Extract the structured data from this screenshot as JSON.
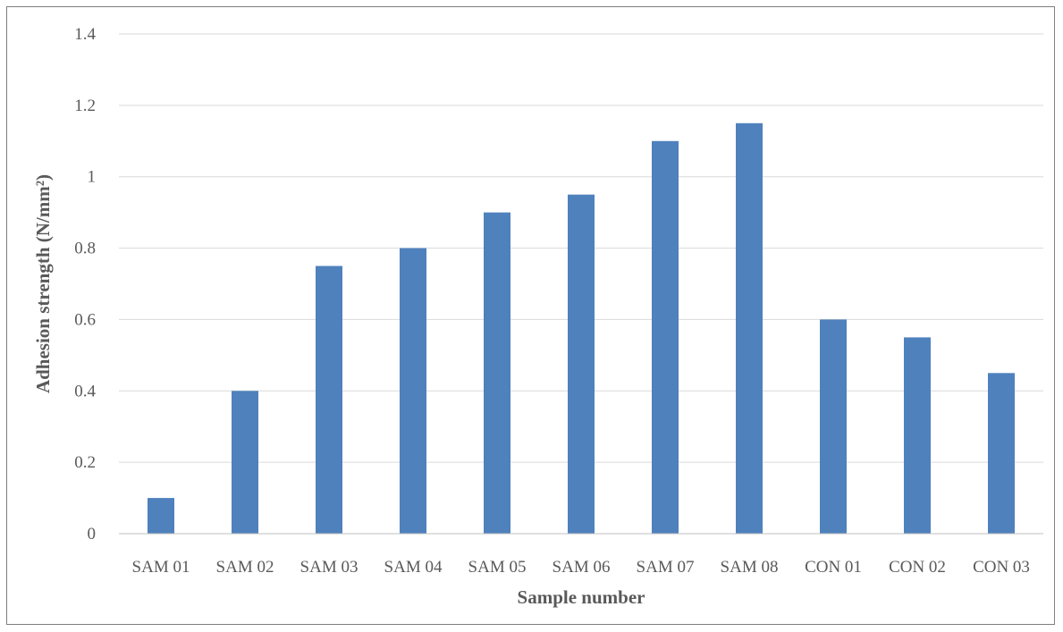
{
  "chart_data": {
    "type": "bar",
    "title": "",
    "xlabel": "Sample number",
    "ylabel": "Adhesion strength (N/mm²)",
    "ylim": [
      0,
      1.4
    ],
    "ytick_step": 0.2,
    "ytick_labels": [
      "0",
      "0.2",
      "0.4",
      "0.6",
      "0.8",
      "1",
      "1.2",
      "1.4"
    ],
    "categories": [
      "SAM 01",
      "SAM 02",
      "SAM 03",
      "SAM 04",
      "SAM 05",
      "SAM 06",
      "SAM 07",
      "SAM 08",
      "CON 01",
      "CON 02",
      "CON 03"
    ],
    "values": [
      0.1,
      0.4,
      0.75,
      0.8,
      0.9,
      0.95,
      1.1,
      1.15,
      0.6,
      0.55,
      0.45
    ],
    "bar_color": "#4f81bd",
    "grid_color": "#d9d9d9",
    "grid": true,
    "legend": "none"
  }
}
